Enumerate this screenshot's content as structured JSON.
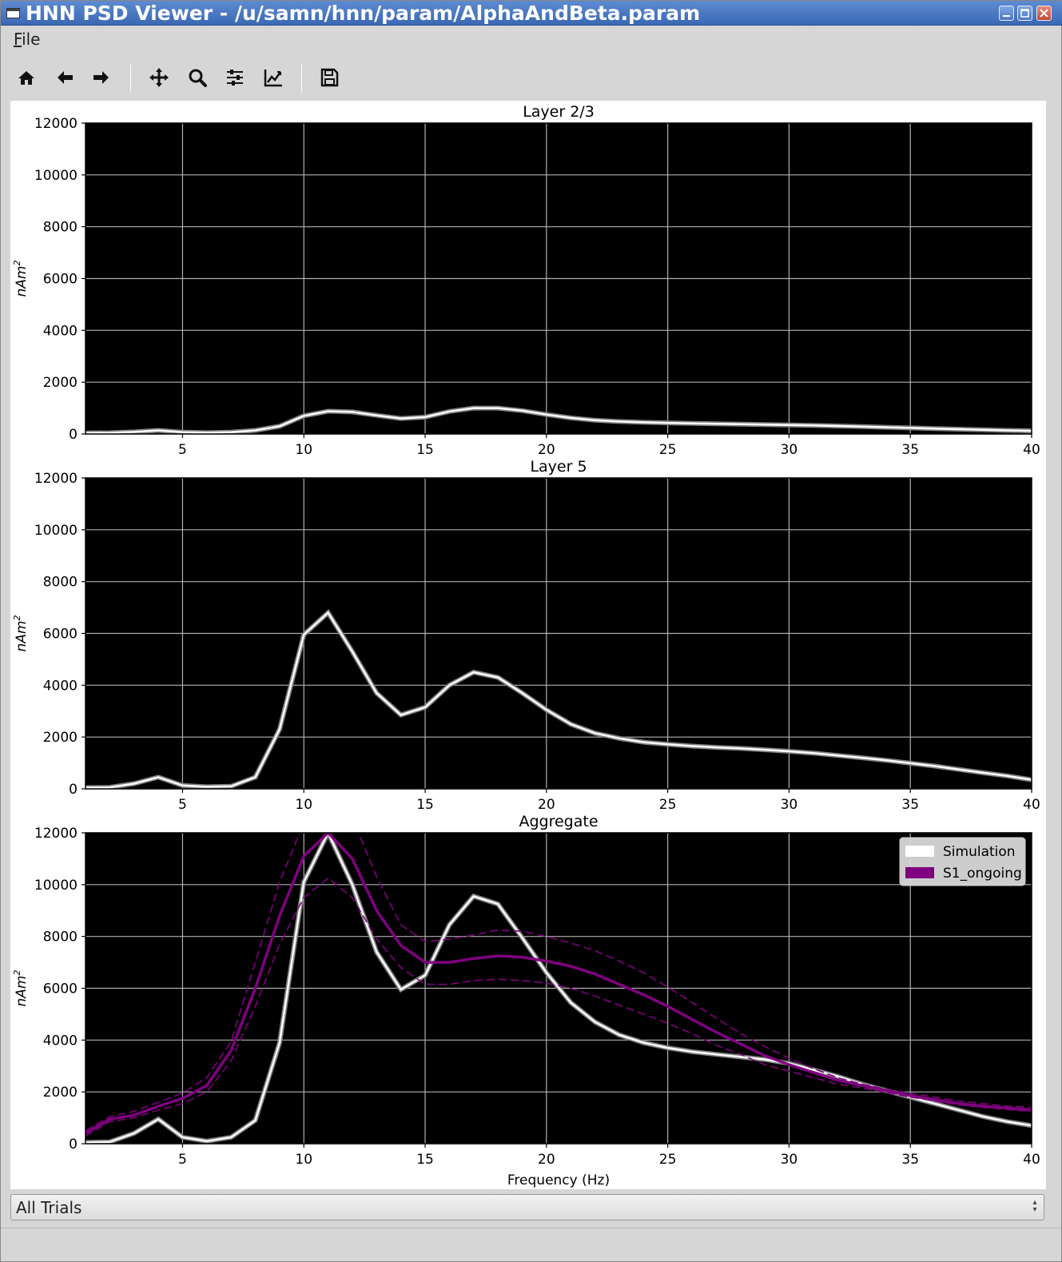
{
  "window": {
    "title": "HNN PSD Viewer - /u/samn/hnn/param/AlphaAndBeta.param",
    "controls": [
      "minimize",
      "maximize",
      "close"
    ]
  },
  "menu": {
    "file_label": "File"
  },
  "toolbar": {
    "buttons": [
      "home-icon",
      "back-icon",
      "forward-icon",
      "pan-icon",
      "zoom-icon",
      "configure-subplots-icon",
      "edit-axes-icon",
      "save-icon"
    ]
  },
  "colors": {
    "axes_bg": "#000000",
    "grid": "#b0b0b0",
    "simulation": "#ffffff",
    "simulation_edge": "#808080",
    "s1": "#800080"
  },
  "chart_data": [
    {
      "type": "line",
      "title": "Layer 2/3",
      "xlabel": "",
      "ylabel": "nAm",
      "ylabel_sup": "2",
      "xlim": [
        1,
        40
      ],
      "ylim": [
        0,
        12000
      ],
      "xticks": [
        5,
        10,
        15,
        20,
        25,
        30,
        35,
        40
      ],
      "yticks": [
        0,
        2000,
        4000,
        6000,
        8000,
        10000,
        12000
      ],
      "grid": true,
      "x": [
        1,
        2,
        3,
        4,
        5,
        6,
        7,
        8,
        9,
        10,
        11,
        12,
        13,
        14,
        15,
        16,
        17,
        18,
        19,
        20,
        21,
        22,
        23,
        24,
        25,
        26,
        27,
        28,
        29,
        30,
        31,
        32,
        33,
        34,
        35,
        36,
        37,
        38,
        39,
        40
      ],
      "series": [
        {
          "name": "Simulation",
          "style": "simulation",
          "values": [
            40,
            45,
            80,
            140,
            70,
            50,
            70,
            140,
            300,
            700,
            880,
            850,
            720,
            600,
            650,
            870,
            1000,
            1000,
            900,
            750,
            620,
            530,
            480,
            450,
            430,
            410,
            395,
            380,
            365,
            350,
            330,
            310,
            285,
            260,
            235,
            210,
            185,
            165,
            140,
            120
          ]
        }
      ]
    },
    {
      "type": "line",
      "title": "Layer 5",
      "xlabel": "",
      "ylabel": "nAm",
      "ylabel_sup": "2",
      "xlim": [
        1,
        40
      ],
      "ylim": [
        0,
        12000
      ],
      "xticks": [
        5,
        10,
        15,
        20,
        25,
        30,
        35,
        40
      ],
      "yticks": [
        0,
        2000,
        4000,
        6000,
        8000,
        10000,
        12000
      ],
      "grid": true,
      "x": [
        1,
        2,
        3,
        4,
        5,
        6,
        7,
        8,
        9,
        10,
        11,
        12,
        13,
        14,
        15,
        16,
        17,
        18,
        19,
        20,
        21,
        22,
        23,
        24,
        25,
        26,
        27,
        28,
        29,
        30,
        31,
        32,
        33,
        34,
        35,
        36,
        37,
        38,
        39,
        40
      ],
      "series": [
        {
          "name": "Simulation",
          "style": "simulation",
          "values": [
            50,
            60,
            200,
            450,
            130,
            80,
            100,
            450,
            2300,
            5950,
            6800,
            5300,
            3700,
            2850,
            3150,
            4000,
            4500,
            4300,
            3700,
            3050,
            2500,
            2150,
            1950,
            1800,
            1720,
            1650,
            1600,
            1560,
            1510,
            1450,
            1380,
            1290,
            1200,
            1100,
            990,
            880,
            750,
            620,
            500,
            350
          ]
        }
      ]
    },
    {
      "type": "line",
      "title": "Aggregate",
      "xlabel": "Frequency (Hz)",
      "ylabel": "nAm",
      "ylabel_sup": "2",
      "xlim": [
        1,
        40
      ],
      "ylim": [
        0,
        12000
      ],
      "xticks": [
        5,
        10,
        15,
        20,
        25,
        30,
        35,
        40
      ],
      "yticks": [
        0,
        2000,
        4000,
        6000,
        8000,
        10000,
        12000
      ],
      "grid": true,
      "legend": {
        "position": "top-right",
        "entries": [
          "Simulation",
          "S1_ongoing"
        ]
      },
      "x": [
        1,
        2,
        3,
        4,
        5,
        6,
        7,
        8,
        9,
        10,
        11,
        12,
        13,
        14,
        15,
        16,
        17,
        18,
        19,
        20,
        21,
        22,
        23,
        24,
        25,
        26,
        27,
        28,
        29,
        30,
        31,
        32,
        33,
        34,
        35,
        36,
        37,
        38,
        39,
        40
      ],
      "series": [
        {
          "name": "Simulation",
          "style": "simulation",
          "values": [
            50,
            70,
            400,
            950,
            250,
            100,
            250,
            900,
            3900,
            10100,
            12000,
            10000,
            7400,
            5950,
            6500,
            8450,
            9550,
            9250,
            7950,
            6600,
            5450,
            4700,
            4200,
            3900,
            3700,
            3550,
            3450,
            3350,
            3250,
            3100,
            2850,
            2600,
            2300,
            2050,
            1800,
            1550,
            1300,
            1050,
            850,
            700
          ]
        },
        {
          "name": "S1_ongoing",
          "style": "s1",
          "values": [
            400,
            950,
            1100,
            1450,
            1750,
            2250,
            3600,
            6000,
            8800,
            11100,
            12000,
            11000,
            9000,
            7650,
            7000,
            7000,
            7150,
            7250,
            7200,
            7050,
            6850,
            6550,
            6150,
            5750,
            5300,
            4800,
            4300,
            3850,
            3400,
            3050,
            2750,
            2450,
            2250,
            2050,
            1850,
            1700,
            1550,
            1450,
            1370,
            1300
          ]
        },
        {
          "name": "S1_ongoing_upper",
          "style": "s1-dashed",
          "values": [
            500,
            1050,
            1250,
            1600,
            1950,
            2550,
            3950,
            7000,
            10100,
            12400,
            12700,
            12600,
            10300,
            8450,
            7800,
            7900,
            8050,
            8250,
            8200,
            8000,
            7750,
            7450,
            7050,
            6600,
            6050,
            5450,
            4850,
            4250,
            3750,
            3300,
            2900,
            2550,
            2300,
            2100,
            1950,
            1800,
            1650,
            1550,
            1450,
            1400
          ]
        },
        {
          "name": "S1_ongoing_lower",
          "style": "s1-dashed",
          "values": [
            300,
            850,
            1000,
            1300,
            1550,
            2000,
            3200,
            5300,
            7700,
            9500,
            10250,
            9500,
            7900,
            6800,
            6150,
            6150,
            6300,
            6350,
            6300,
            6200,
            6000,
            5700,
            5350,
            5000,
            4650,
            4250,
            3800,
            3450,
            3050,
            2800,
            2550,
            2300,
            2150,
            1980,
            1800,
            1650,
            1500,
            1400,
            1320,
            1250
          ]
        }
      ]
    }
  ],
  "trial_selector": {
    "value": "All Trials"
  }
}
